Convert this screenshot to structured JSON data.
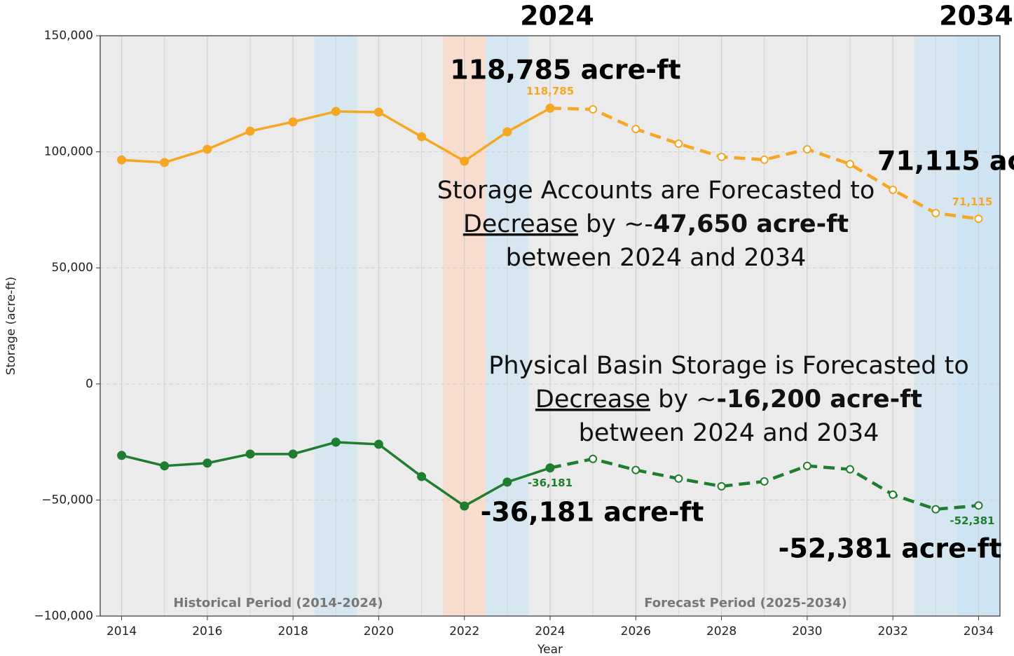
{
  "chart_data": {
    "type": "line",
    "header_labels": [
      "2024",
      "2034"
    ],
    "xlabel": "Year",
    "ylabel": "Storage (acre-ft)",
    "x": [
      2014,
      2015,
      2016,
      2017,
      2018,
      2019,
      2020,
      2021,
      2022,
      2023,
      2024,
      2025,
      2026,
      2027,
      2028,
      2029,
      2030,
      2031,
      2032,
      2033,
      2034
    ],
    "xlim": [
      2013.5,
      2034.5
    ],
    "xticks": [
      2014,
      2016,
      2018,
      2020,
      2022,
      2024,
      2026,
      2028,
      2030,
      2032,
      2034
    ],
    "xminor": [
      2015,
      2017,
      2019,
      2021,
      2023,
      2025,
      2027,
      2029,
      2031,
      2033
    ],
    "ylim": [
      -100000,
      150000
    ],
    "yticks": [
      {
        "value": -100000,
        "label": "−100,000"
      },
      {
        "value": -50000,
        "label": "−50,000"
      },
      0,
      {
        "value": 50000,
        "label": "50,000"
      },
      {
        "value": 100000,
        "label": "100,000"
      },
      {
        "value": 150000,
        "label": "150,000"
      }
    ],
    "grid": true,
    "spans": [
      {
        "x0": 2018.5,
        "x1": 2019.5,
        "color": "#d6e7f2"
      },
      {
        "x0": 2021.5,
        "x1": 2022.5,
        "color": "#f8dccd"
      },
      {
        "x0": 2022.5,
        "x1": 2023.5,
        "color": "#d6e7f2"
      },
      {
        "x0": 2032.5,
        "x1": 2033.5,
        "color": "#d6e7f2"
      },
      {
        "x0": 2033.5,
        "x1": 2034.5,
        "color": "#cfe4f3"
      }
    ],
    "series": [
      {
        "color": "#f5a623",
        "dashed": true,
        "marker": "open",
        "values": [
          null,
          null,
          null,
          null,
          null,
          null,
          null,
          null,
          null,
          null,
          118785,
          118300,
          109800,
          103500,
          97800,
          96600,
          101100,
          94700,
          83600,
          73600,
          71115
        ],
        "value_labels": [
          null,
          null,
          null,
          null,
          null,
          null,
          null,
          null,
          null,
          null,
          null,
          null,
          null,
          null,
          null,
          null,
          null,
          null,
          null,
          null,
          "71,115"
        ]
      },
      {
        "color": "#f5a623",
        "dashed": false,
        "marker": "filled",
        "values": [
          96500,
          95400,
          101100,
          108900,
          112900,
          117400,
          117100,
          106500,
          96000,
          108600,
          118785,
          null,
          null,
          null,
          null,
          null,
          null,
          null,
          null,
          null,
          null
        ],
        "value_labels": [
          null,
          null,
          null,
          null,
          null,
          null,
          null,
          null,
          null,
          null,
          "118,785",
          null,
          null,
          null,
          null,
          null,
          null,
          null,
          null,
          null,
          null
        ]
      },
      {
        "color": "#1e7d2e",
        "dashed": true,
        "marker": "open",
        "values": [
          null,
          null,
          null,
          null,
          null,
          null,
          null,
          null,
          null,
          null,
          -36181,
          -32300,
          -37100,
          -40800,
          -44100,
          -42000,
          -35300,
          -36800,
          -47700,
          -54000,
          -52381
        ],
        "value_labels": [
          null,
          null,
          null,
          null,
          null,
          null,
          null,
          null,
          null,
          null,
          null,
          null,
          null,
          null,
          null,
          null,
          null,
          null,
          null,
          null,
          "-52,381"
        ]
      },
      {
        "color": "#1e7d2e",
        "dashed": false,
        "marker": "filled",
        "values": [
          -30800,
          -35300,
          -34100,
          -30200,
          -30200,
          -25100,
          -26000,
          -39900,
          -52600,
          -42300,
          -36181,
          null,
          null,
          null,
          null,
          null,
          null,
          null,
          null,
          null,
          null
        ],
        "value_labels": [
          null,
          null,
          null,
          null,
          null,
          null,
          null,
          null,
          null,
          null,
          "-36,181",
          null,
          null,
          null,
          null,
          null,
          null,
          null,
          null,
          null,
          null
        ]
      }
    ],
    "annotations": [
      "118,785 acre-ft",
      "71,115 ac",
      "-36,181 acre-ft",
      "-52,381 acre-ft"
    ],
    "period_labels": [
      "Historical Period (2014-2024)",
      "Forecast Period (2025-2034)"
    ],
    "notes": [
      [
        [
          "Storage Accounts are Forecasted to"
        ],
        [
          "Decrease",
          " by ~-",
          "47,650 acre-ft"
        ],
        [
          "between 2024 and 2034"
        ]
      ],
      [
        [
          "Physical Basin Storage is Forecasted to"
        ],
        [
          "Decrease",
          " by ~",
          "-16,200 acre-ft"
        ],
        [
          "between 2024 and 2034"
        ]
      ]
    ]
  }
}
